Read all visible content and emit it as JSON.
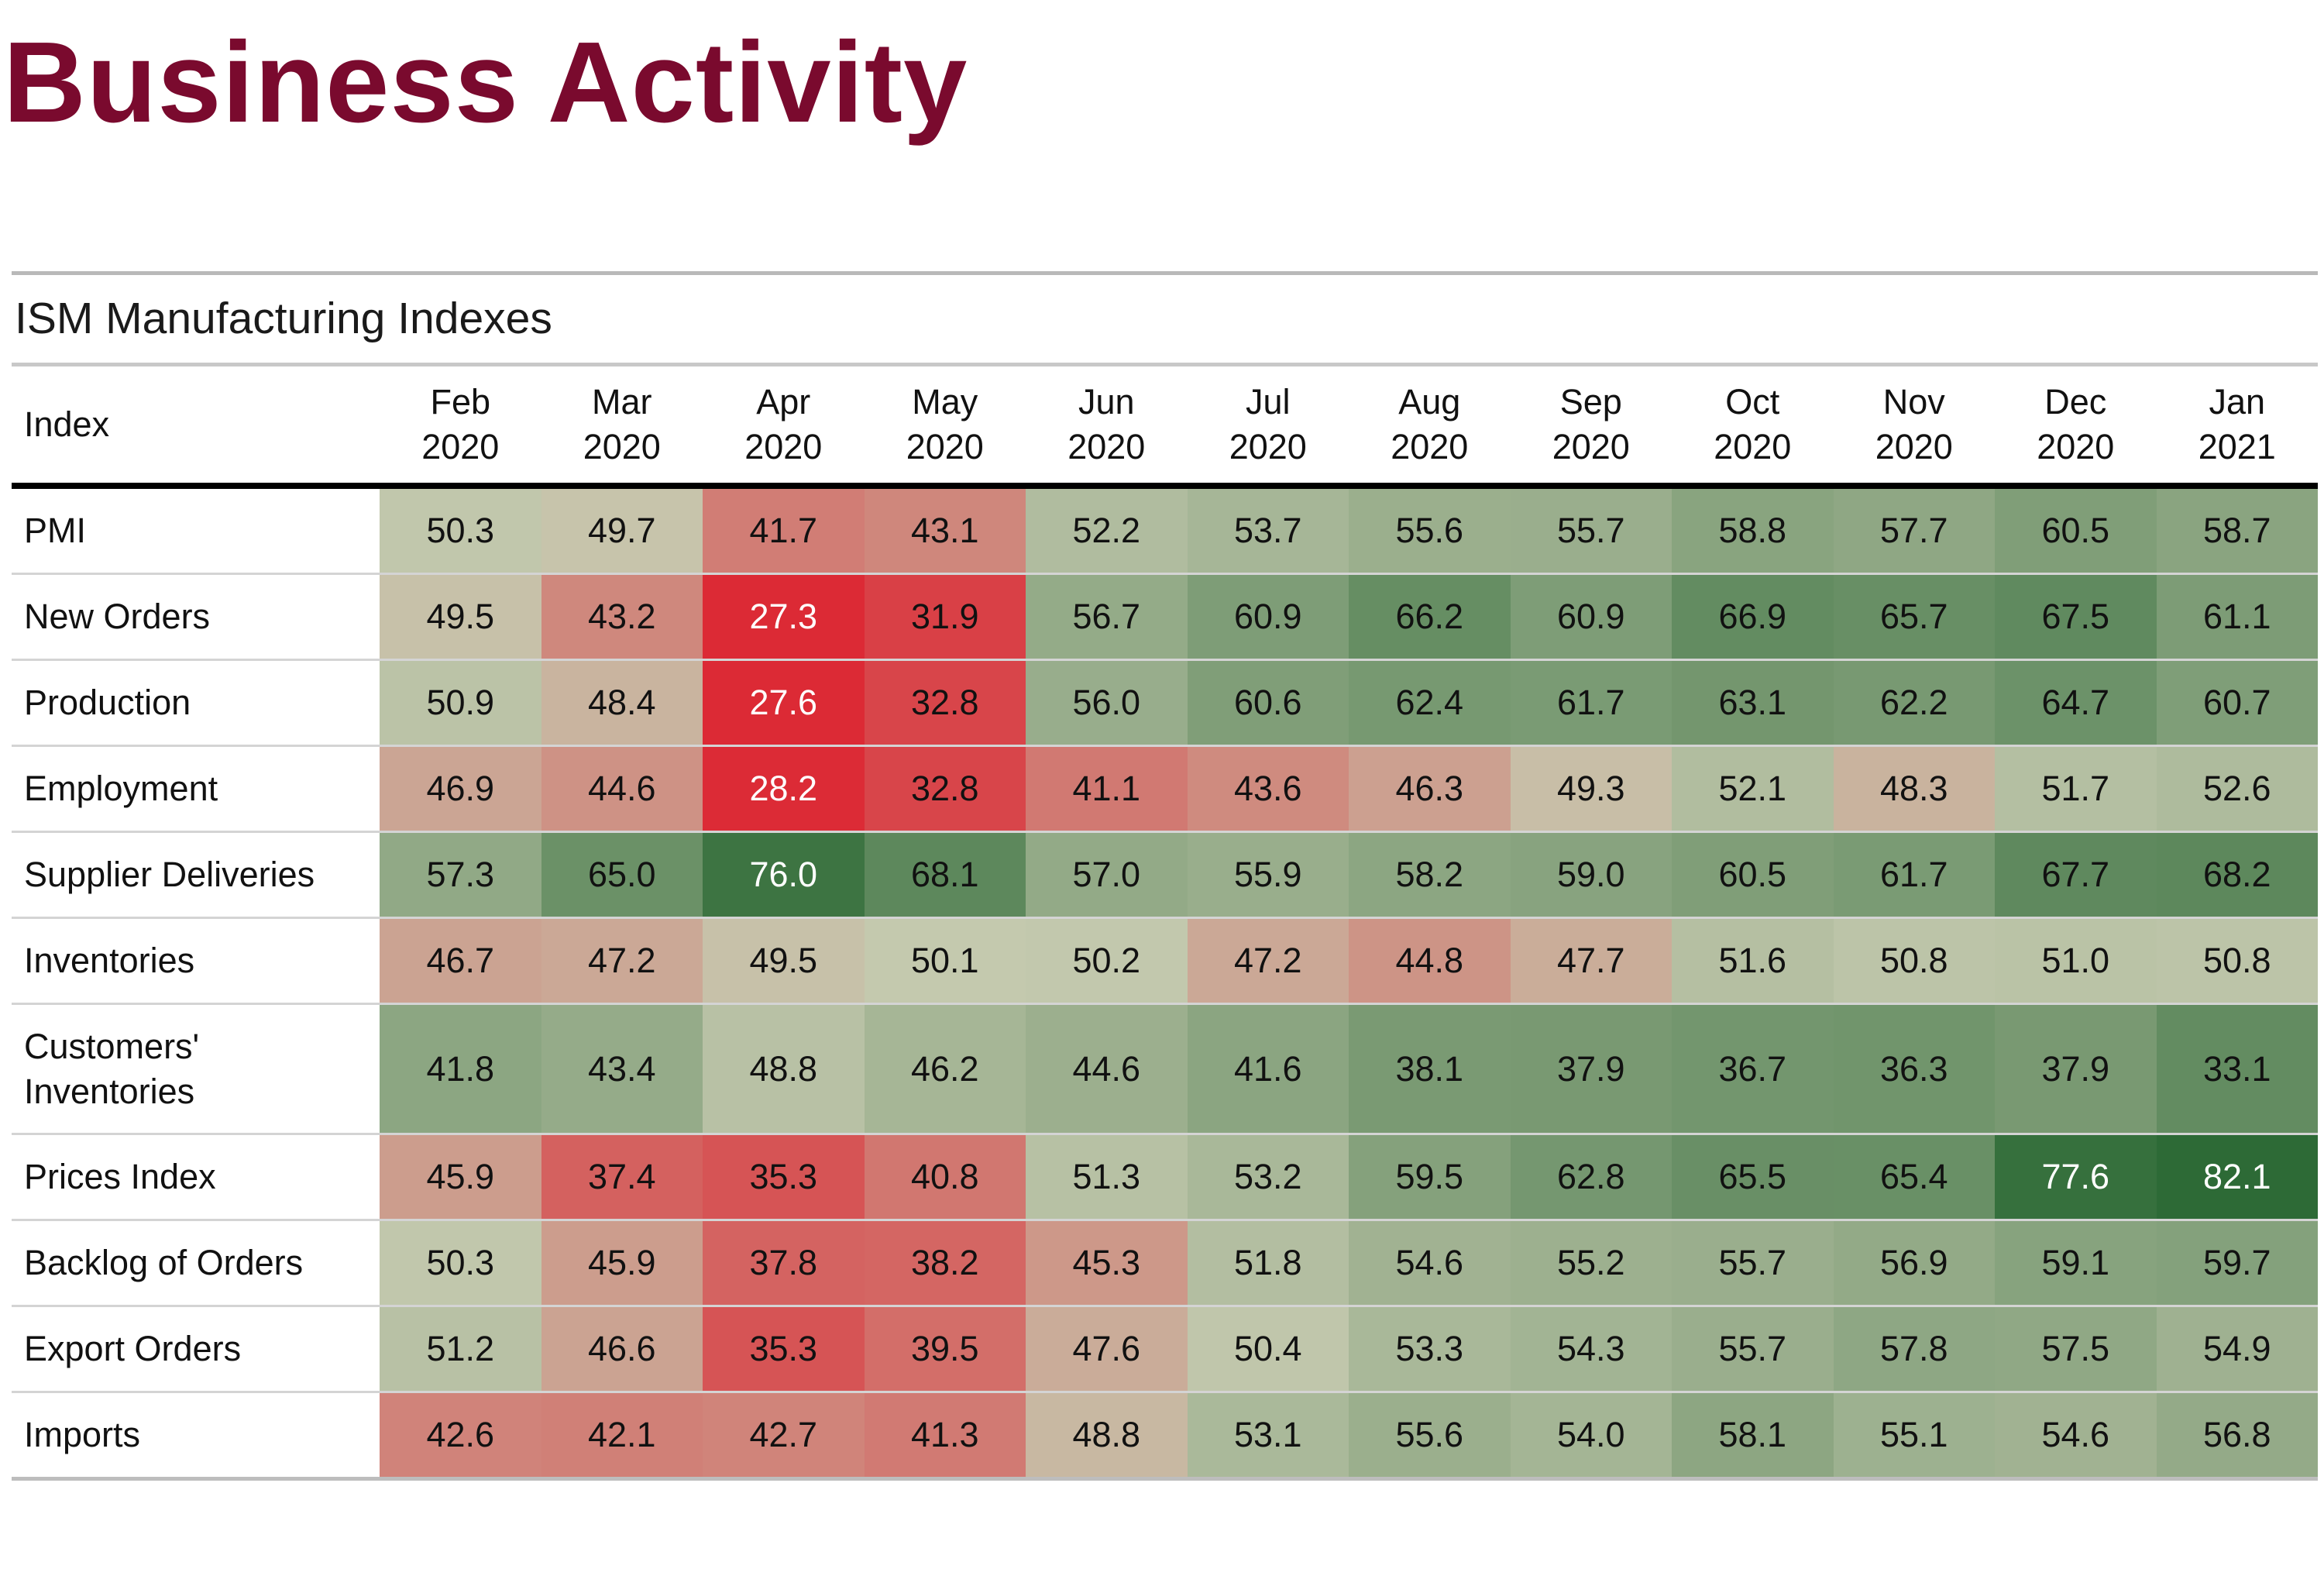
{
  "page": {
    "title": "Business Activity"
  },
  "table": {
    "caption": "ISM Manufacturing Indexes",
    "index_header": "Index"
  },
  "chart_data": {
    "type": "heatmap",
    "title": "ISM Manufacturing Indexes",
    "columns": [
      {
        "month": "Feb",
        "year": "2020"
      },
      {
        "month": "Mar",
        "year": "2020"
      },
      {
        "month": "Apr",
        "year": "2020"
      },
      {
        "month": "May",
        "year": "2020"
      },
      {
        "month": "Jun",
        "year": "2020"
      },
      {
        "month": "Jul",
        "year": "2020"
      },
      {
        "month": "Aug",
        "year": "2020"
      },
      {
        "month": "Sep",
        "year": "2020"
      },
      {
        "month": "Oct",
        "year": "2020"
      },
      {
        "month": "Nov",
        "year": "2020"
      },
      {
        "month": "Dec",
        "year": "2020"
      },
      {
        "month": "Jan",
        "year": "2021"
      }
    ],
    "rows": [
      {
        "name": "PMI",
        "values": [
          50.3,
          49.7,
          41.7,
          43.1,
          52.2,
          53.7,
          55.6,
          55.7,
          58.8,
          57.7,
          60.5,
          58.7
        ]
      },
      {
        "name": "New Orders",
        "values": [
          49.5,
          43.2,
          27.3,
          31.9,
          56.7,
          60.9,
          66.2,
          60.9,
          66.9,
          65.7,
          67.5,
          61.1
        ]
      },
      {
        "name": "Production",
        "values": [
          50.9,
          48.4,
          27.6,
          32.8,
          56.0,
          60.6,
          62.4,
          61.7,
          63.1,
          62.2,
          64.7,
          60.7
        ]
      },
      {
        "name": "Employment",
        "values": [
          46.9,
          44.6,
          28.2,
          32.8,
          41.1,
          43.6,
          46.3,
          49.3,
          52.1,
          48.3,
          51.7,
          52.6
        ]
      },
      {
        "name": "Supplier Deliveries",
        "values": [
          57.3,
          65.0,
          76.0,
          68.1,
          57.0,
          55.9,
          58.2,
          59.0,
          60.5,
          61.7,
          67.7,
          68.2
        ]
      },
      {
        "name": "Inventories",
        "values": [
          46.7,
          47.2,
          49.5,
          50.1,
          50.2,
          47.2,
          44.8,
          47.7,
          51.6,
          50.8,
          51.0,
          50.8
        ]
      },
      {
        "name": "Customers' Inventories",
        "values": [
          41.8,
          43.4,
          48.8,
          46.2,
          44.6,
          41.6,
          38.1,
          37.9,
          36.7,
          36.3,
          37.9,
          33.1
        ]
      },
      {
        "name": "Prices Index",
        "values": [
          45.9,
          37.4,
          35.3,
          40.8,
          51.3,
          53.2,
          59.5,
          62.8,
          65.5,
          65.4,
          77.6,
          82.1
        ]
      },
      {
        "name": "Backlog of Orders",
        "values": [
          50.3,
          45.9,
          37.8,
          38.2,
          45.3,
          51.8,
          54.6,
          55.2,
          55.7,
          56.9,
          59.1,
          59.7
        ]
      },
      {
        "name": "Export Orders",
        "values": [
          51.2,
          46.6,
          35.3,
          39.5,
          47.6,
          50.4,
          53.3,
          54.3,
          55.7,
          57.8,
          57.5,
          54.9
        ]
      },
      {
        "name": "Imports",
        "values": [
          42.6,
          42.1,
          42.7,
          41.3,
          48.8,
          53.1,
          55.6,
          54.0,
          58.1,
          55.1,
          54.6,
          56.8
        ]
      }
    ],
    "inverted_color_rows": [
      "Customers' Inventories"
    ],
    "color_scale": {
      "low": "#dc2a35",
      "mid": "#c6cab0",
      "high": "#2d6a36",
      "midpoint": 50
    }
  }
}
